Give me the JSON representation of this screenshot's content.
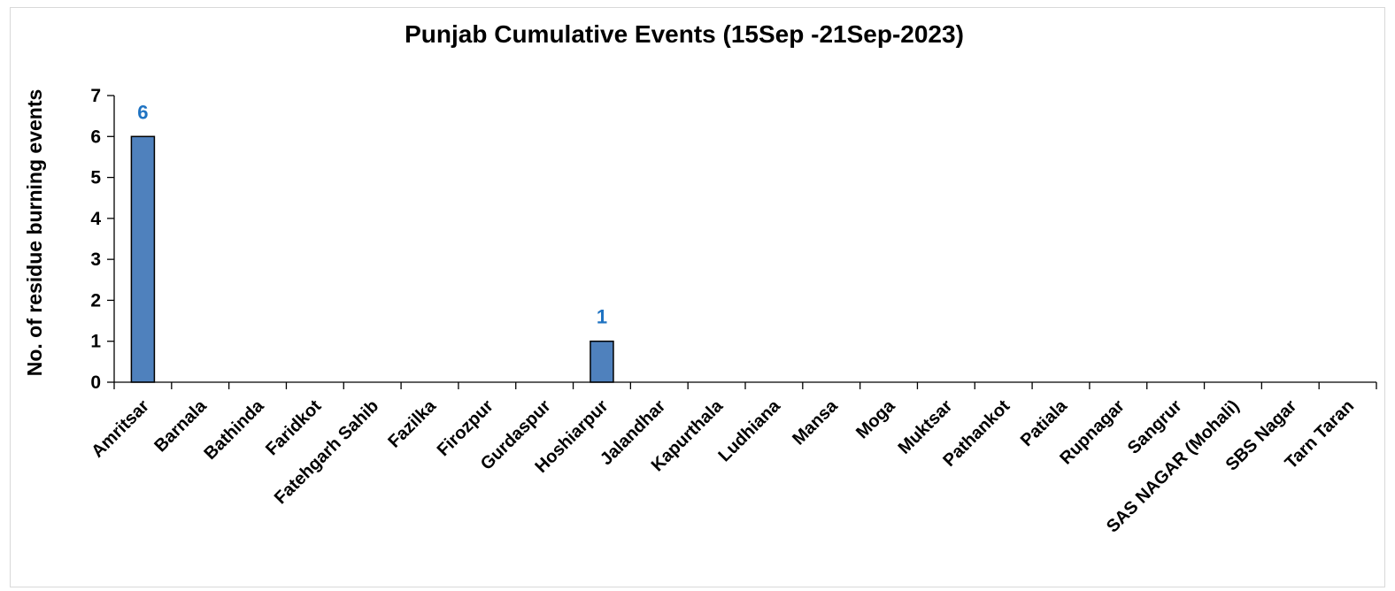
{
  "chart_data": {
    "type": "bar",
    "title": "Punjab Cumulative Events (15Sep -21Sep-2023)",
    "xlabel": "",
    "ylabel": "No. of residue burning events",
    "ylim": [
      0,
      7
    ],
    "yticks": [
      0,
      1,
      2,
      3,
      4,
      5,
      6,
      7
    ],
    "categories": [
      "Amritsar",
      "Barnala",
      "Bathinda",
      "Faridkot",
      "Fatehgarh Sahib",
      "Fazilka",
      "Firozpur",
      "Gurdaspur",
      "Hoshiarpur",
      "Jalandhar",
      "Kapurthala",
      "Ludhiana",
      "Mansa",
      "Moga",
      "Muktsar",
      "Pathankot",
      "Patiala",
      "Rupnagar",
      "Sangrur",
      "SAS NAGAR (Mohali)",
      "SBS Nagar",
      "Tarn Taran"
    ],
    "values": [
      6,
      0,
      0,
      0,
      0,
      0,
      0,
      0,
      1,
      0,
      0,
      0,
      0,
      0,
      0,
      0,
      0,
      0,
      0,
      0,
      0,
      0
    ],
    "data_labels": [
      "6",
      "",
      "",
      "",
      "",
      "",
      "",
      "",
      "1",
      "",
      "",
      "",
      "",
      "",
      "",
      "",
      "",
      "",
      "",
      "",
      "",
      ""
    ],
    "grid": false,
    "legend": "none",
    "bar_color": "#4f81bd",
    "bar_edge_color": "#000000",
    "data_label_color": "#1f73c2"
  }
}
